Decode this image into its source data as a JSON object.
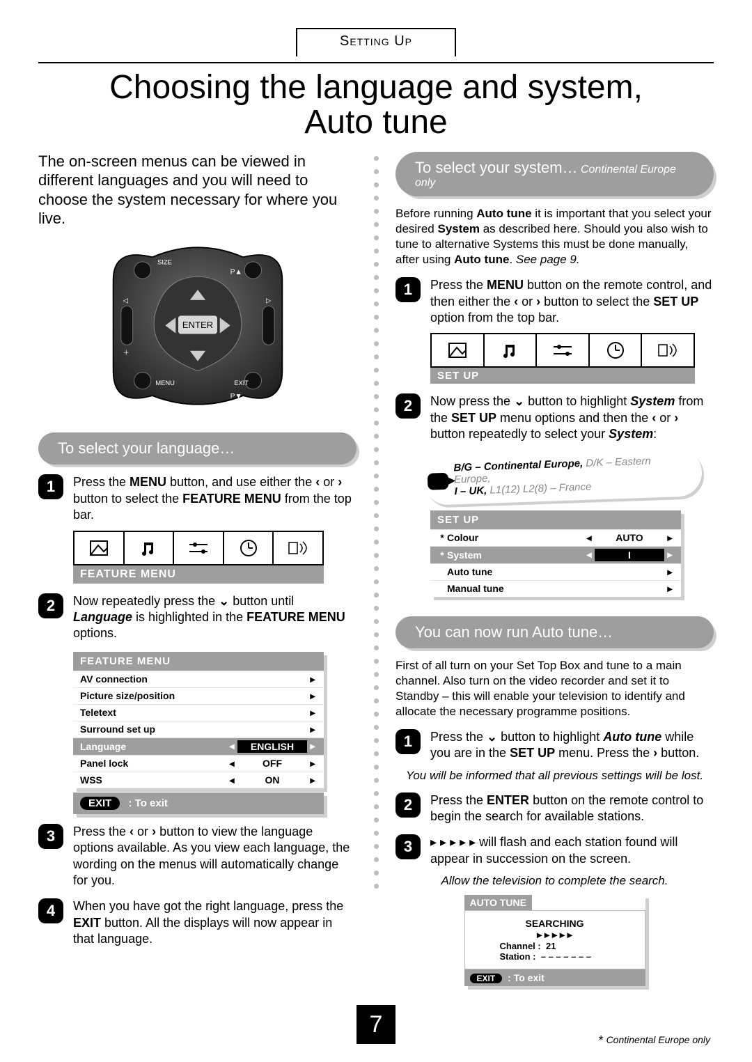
{
  "page": {
    "section_tab": "Setting Up",
    "title_line1": "Choosing the language and system,",
    "title_line2": "Auto tune",
    "page_number": "7",
    "footnote_symbol": "*",
    "footnote_text": "Continental Europe only"
  },
  "left": {
    "intro": "The on-screen menus can be viewed in different languages and you will need to choose the system necessary for where you live.",
    "remote_labels": {
      "size": "SIZE",
      "p_up": "P▲",
      "p_down": "P▼",
      "menu": "MENU",
      "exit": "EXIT",
      "enter": "ENTER"
    },
    "heading": "To select your language…",
    "step1_a": "Press the ",
    "step1_b": "MENU",
    "step1_c": " button, and use either the ",
    "step1_d": " or ",
    "step1_e": " button to select the ",
    "step1_f": "FEATURE MENU",
    "step1_g": " from the top bar.",
    "menu_label1": "FEATURE MENU",
    "step2_a": "Now repeatedly press the ",
    "step2_b": " button until ",
    "step2_c": "Language",
    "step2_d": " is highlighted in the ",
    "step2_e": "FEATURE MENU",
    "step2_f": " options.",
    "osd": {
      "title": "FEATURE MENU",
      "rows": [
        {
          "name": "AV connection",
          "val": "",
          "sel": false,
          "lr": false,
          "star": false
        },
        {
          "name": "Picture size/position",
          "val": "",
          "sel": false,
          "lr": false,
          "star": false
        },
        {
          "name": "Teletext",
          "val": "",
          "sel": false,
          "lr": false,
          "star": false
        },
        {
          "name": "Surround set up",
          "val": "",
          "sel": false,
          "lr": false,
          "star": false
        },
        {
          "name": "Language",
          "val": "ENGLISH",
          "sel": true,
          "lr": true,
          "star": false
        },
        {
          "name": "Panel lock",
          "val": "OFF",
          "sel": false,
          "lr": true,
          "star": false
        },
        {
          "name": "WSS",
          "val": "ON",
          "sel": false,
          "lr": true,
          "star": false
        }
      ],
      "exit_pill": "EXIT",
      "exit_text": ": To exit"
    },
    "step3": "Press the ‹ or › button to view the language options available. As you view each language, the wording on the menus will automatically change for you.",
    "step3_a": "Press the ",
    "step3_b": " or ",
    "step3_c": " button to view the language options available. As you view each language, the wording on the menus will automatically change for you.",
    "step4_a": "When you have got the right language, press the ",
    "step4_b": "EXIT",
    "step4_c": " button. All the displays will now appear in that language."
  },
  "right": {
    "heading1": "To select your system…",
    "heading1_note": "Continental Europe only",
    "para1_a": "Before running ",
    "para1_b": "Auto tune",
    "para1_c": " it is important that you select your desired ",
    "para1_d": "System",
    "para1_e": " as described here. Should you also wish to tune to alternative Systems this must be done manually, after using ",
    "para1_f": "Auto tune",
    "para1_g": ". ",
    "para1_h": "See page 9.",
    "s1_a": "Press the ",
    "s1_b": "MENU",
    "s1_c": " button on the remote control, and then either the ",
    "s1_d": " or ",
    "s1_e": " button to select the ",
    "s1_f": "SET UP",
    "s1_g": " option from the top bar.",
    "menu_label": "SET UP",
    "s2_a": "Now press the ",
    "s2_b": " button to highlight ",
    "s2_c": "System",
    "s2_d": " from the ",
    "s2_e": "SET UP",
    "s2_f": " menu options and then the ",
    "s2_g": " or ",
    "s2_h": " button repeatedly to select your ",
    "s2_i": "System",
    "s2_j": ":",
    "sysnote_a": "B/G – Continental Europe, ",
    "sysnote_b": "D/K – Eastern Europe,",
    "sysnote_c": "I – UK, ",
    "sysnote_d": "L1(12) L2(8) – France",
    "osd": {
      "title": "SET UP",
      "rows": [
        {
          "name": "Colour",
          "val": "AUTO",
          "sel": false,
          "lr": true,
          "star": true
        },
        {
          "name": "System",
          "val": "I",
          "sel": true,
          "lr": true,
          "star": true
        },
        {
          "name": "Auto tune",
          "val": "",
          "sel": false,
          "lr": false,
          "star": false
        },
        {
          "name": "Manual tune",
          "val": "",
          "sel": false,
          "lr": false,
          "star": false
        }
      ]
    },
    "heading2": "You can now run Auto tune…",
    "para2": "First of all turn on your Set Top Box and tune to a main channel. Also turn on the video recorder and set it to Standby – this will enable your television to identify and allocate the necessary programme positions.",
    "a1_a": "Press the ",
    "a1_b": " button to highlight ",
    "a1_c": "Auto tune",
    "a1_d": " while you are in the ",
    "a1_e": "SET UP",
    "a1_f": " menu. Press the ",
    "a1_g": " button.",
    "note1": "You will be informed that all previous settings will be lost.",
    "a2_a": "Press the ",
    "a2_b": "ENTER",
    "a2_c": " button on the remote control to begin the search for available stations.",
    "a3_a": "▸ ▸ ▸ ▸ ▸ will flash and each station found will appear in succession on the screen.",
    "note2": "Allow the television to complete the search.",
    "autotune": {
      "head": "AUTO TUNE",
      "searching": "SEARCHING",
      "arrows": "▸  ▸  ▸  ▸  ▸",
      "channel_label": "Channel :",
      "channel_val": "21",
      "station_label": "Station  :",
      "station_val": "– – – – – – –",
      "exit_pill": "EXIT",
      "exit_text": ": To exit"
    }
  },
  "colors": {
    "grey": "#9e9e9e",
    "shadow": "#cfcfcf",
    "black": "#000000",
    "light": "#bdbdbd"
  }
}
